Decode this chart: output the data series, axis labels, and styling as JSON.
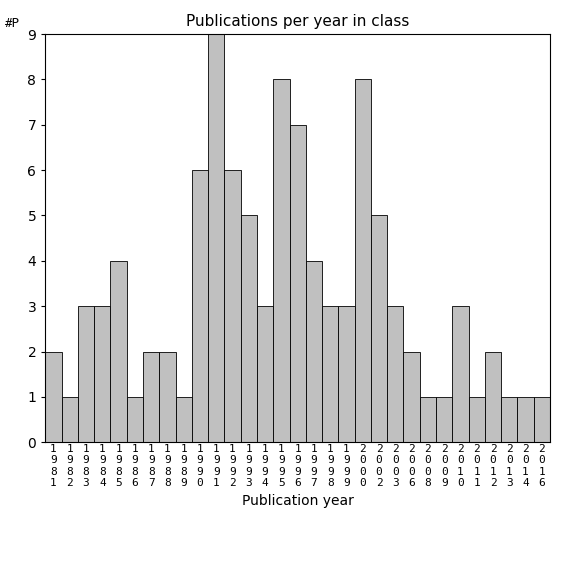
{
  "title": "Publications per year in class",
  "xlabel": "Publication year",
  "ylabel": "#P",
  "years": [
    "1981",
    "1982",
    "1983",
    "1984",
    "1985",
    "1986",
    "1987",
    "1988",
    "1989",
    "1990",
    "1991",
    "1992",
    "1993",
    "1994",
    "1995",
    "1996",
    "1997",
    "1998",
    "1999",
    "2000",
    "2002",
    "2003",
    "2006",
    "2008",
    "2009",
    "2010",
    "2011",
    "2012",
    "2013",
    "2014",
    "2016"
  ],
  "values": [
    2,
    1,
    3,
    3,
    4,
    1,
    2,
    2,
    1,
    6,
    9,
    6,
    5,
    3,
    8,
    7,
    4,
    3,
    3,
    8,
    5,
    3,
    2,
    1,
    1,
    3,
    1,
    2,
    1,
    1,
    1
  ],
  "bar_color": "#c0c0c0",
  "bar_edgecolor": "#000000",
  "ylim_max": 9,
  "yticks": [
    0,
    1,
    2,
    3,
    4,
    5,
    6,
    7,
    8,
    9
  ],
  "title_fontsize": 11,
  "xlabel_fontsize": 10,
  "tick_fontsize": 8
}
